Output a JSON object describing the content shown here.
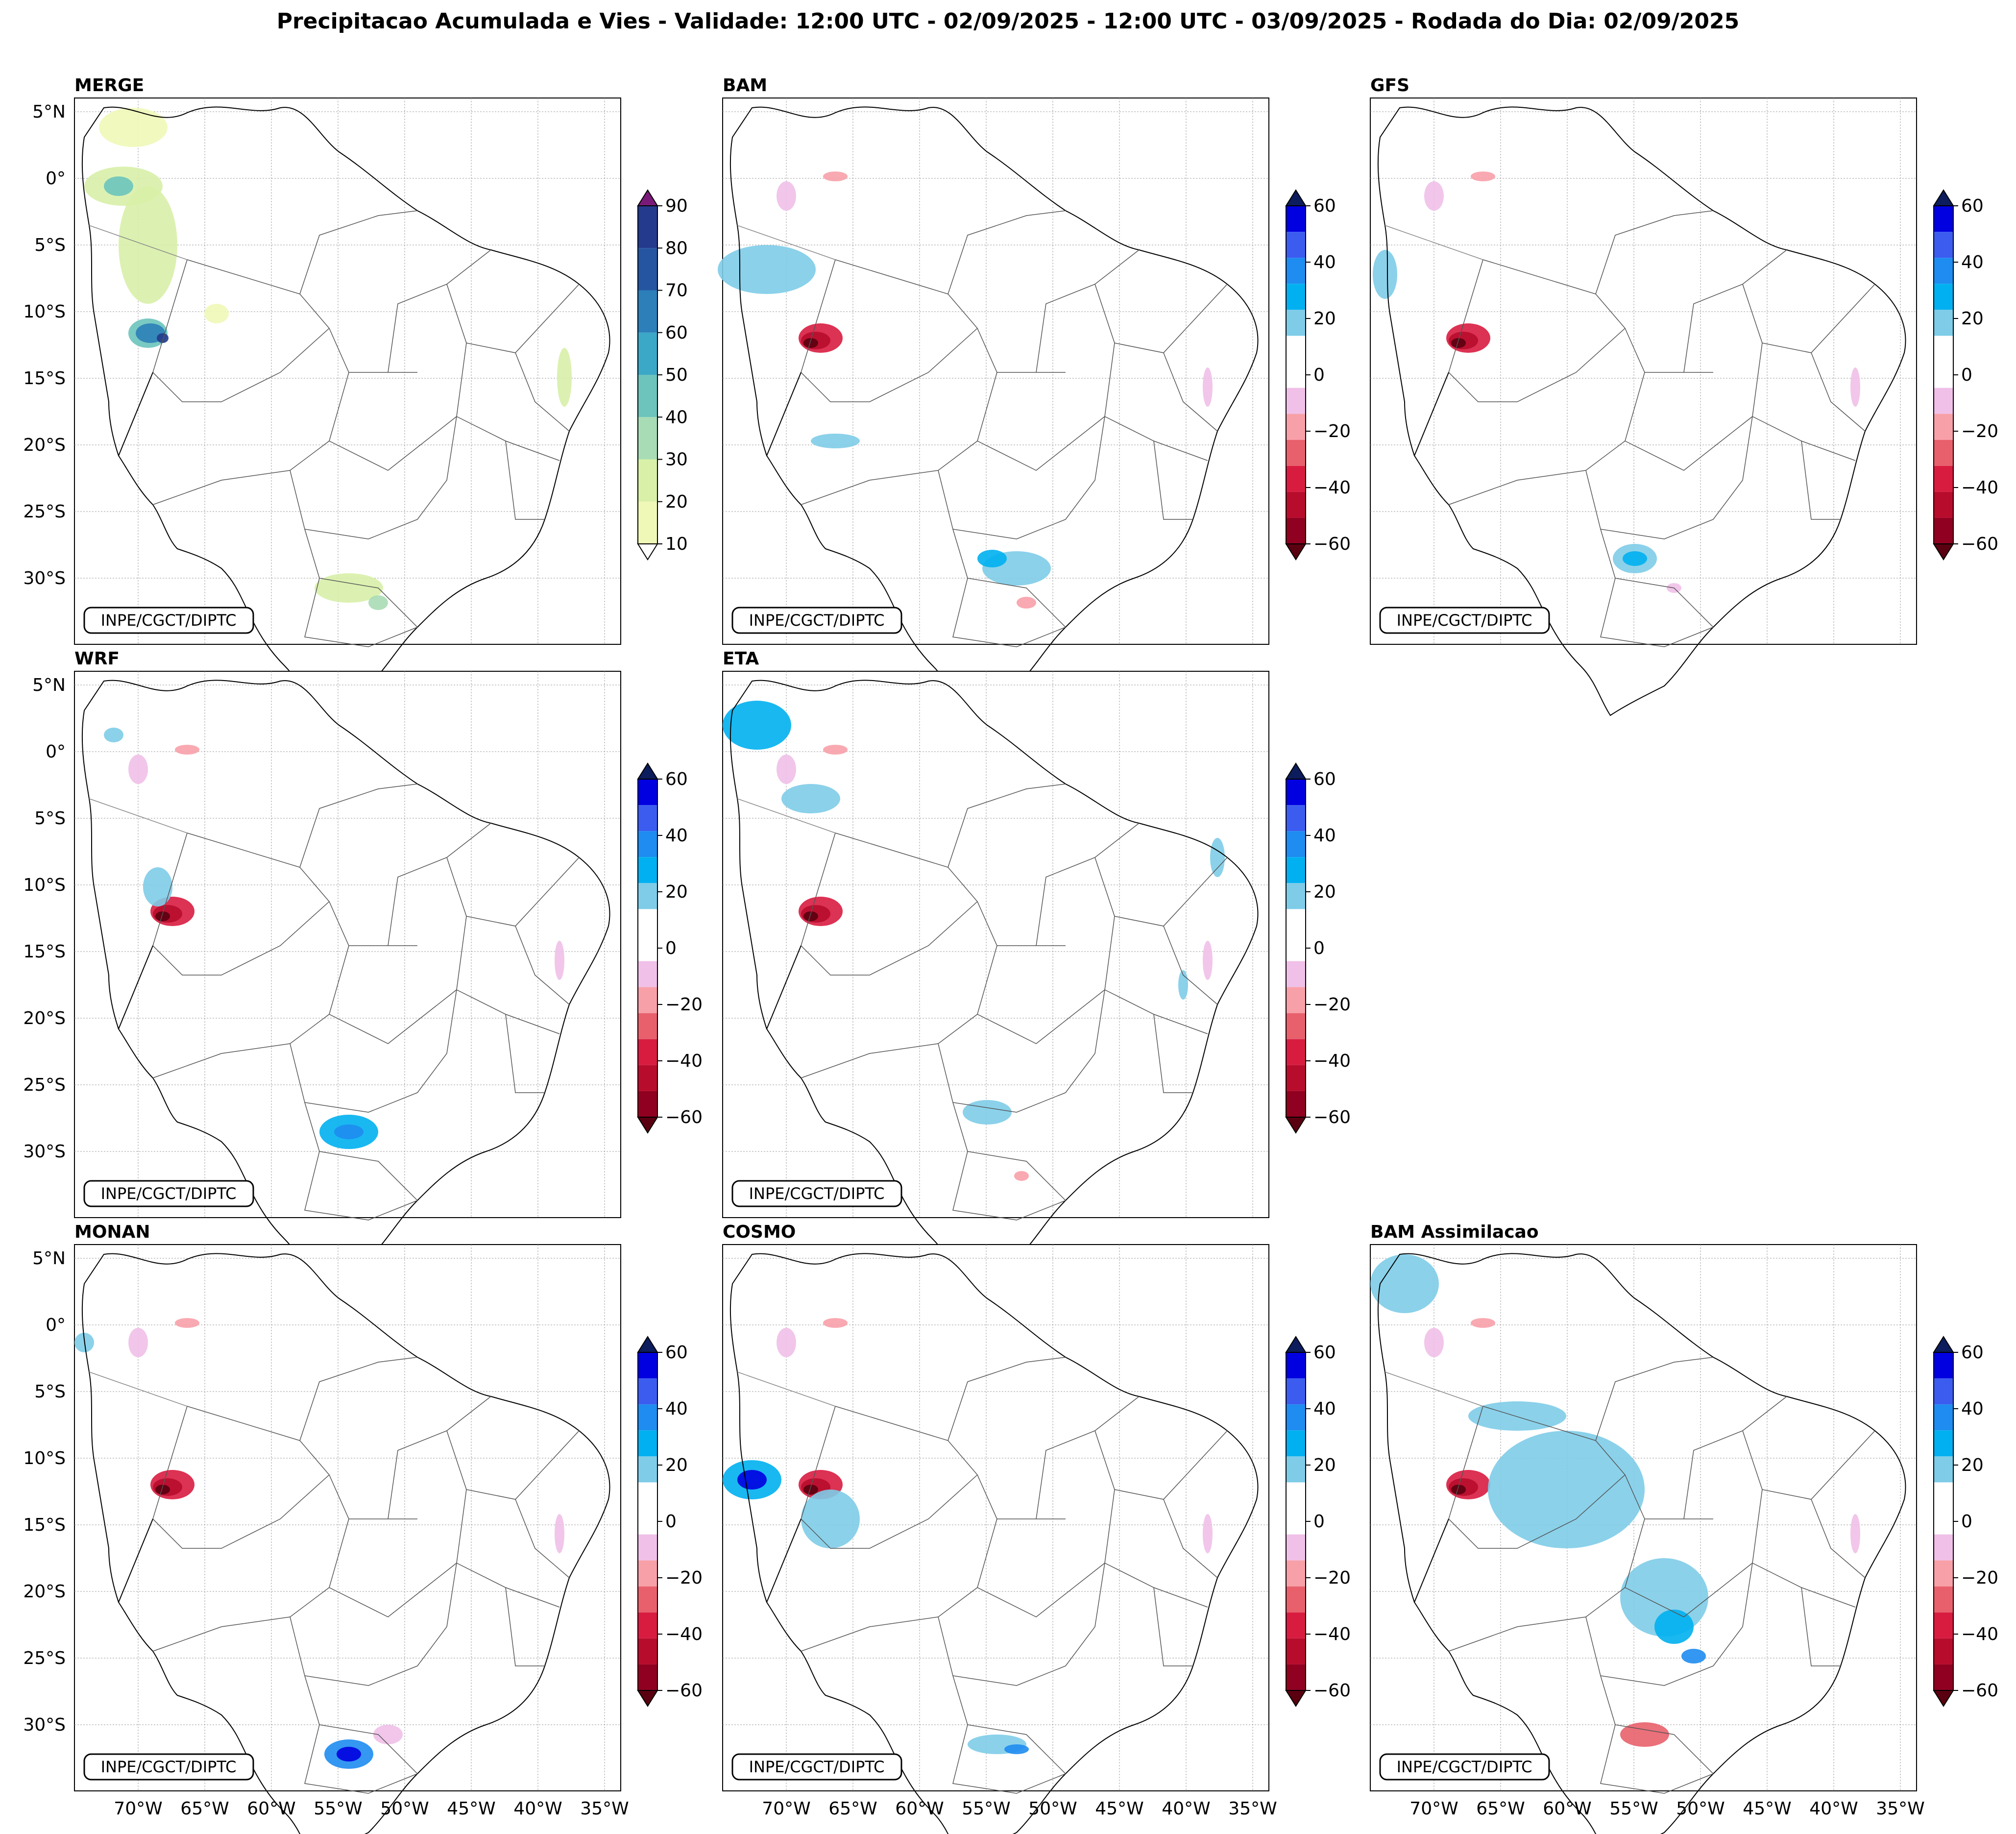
{
  "title": "Precipitacao Acumulada e Vies - Validade: 12:00 UTC - 02/09/2025 - 12:00 UTC - 03/09/2025 - Rodada do Dia: 02/09/2025",
  "credit": "INPE/CGCT/DIPTC",
  "lat_ticks": [
    "5°N",
    "0°",
    "5°S",
    "10°S",
    "15°S",
    "20°S",
    "25°S",
    "30°S"
  ],
  "lon_ticks": [
    "70°W",
    "65°W",
    "60°W",
    "55°W",
    "50°W",
    "45°W",
    "40°W",
    "35°W"
  ],
  "panels": [
    {
      "id": "merge",
      "title": "MERGE",
      "kind": "precip"
    },
    {
      "id": "bam",
      "title": "BAM",
      "kind": "bias"
    },
    {
      "id": "gfs",
      "title": "GFS",
      "kind": "bias"
    },
    {
      "id": "wrf",
      "title": "WRF",
      "kind": "bias"
    },
    {
      "id": "eta",
      "title": "ETA",
      "kind": "bias"
    },
    {
      "id": "monan",
      "title": "MONAN",
      "kind": "bias"
    },
    {
      "id": "cosmo",
      "title": "COSMO",
      "kind": "bias"
    },
    {
      "id": "bam_assim",
      "title": "BAM Assimilacao",
      "kind": "bias"
    }
  ],
  "colorbars": {
    "precip": {
      "ticks": [
        "10",
        "20",
        "30",
        "40",
        "50",
        "60",
        "70",
        "80",
        "90"
      ],
      "colors": [
        "#f0f8b8",
        "#d8f0a8",
        "#a8dcb4",
        "#6cc4bc",
        "#3ca8c8",
        "#2c7fb8",
        "#2555a0",
        "#243a8c",
        "#0c1c5c"
      ],
      "extend_top": "#7a1a78"
    },
    "bias": {
      "ticks": [
        "60",
        "40",
        "20",
        "0",
        "−20",
        "−40",
        "−60"
      ],
      "colors_top_to_bottom": [
        "#0000e0",
        "#3c5cf0",
        "#1e8cf0",
        "#00b0f0",
        "#7ecce8",
        "#ffffff",
        "#ffffff",
        "#f0c0e8",
        "#f8a0a8",
        "#e8606c",
        "#d81c40",
        "#b80c2c",
        "#900020"
      ],
      "extend_top": "#0c1c5c",
      "extend_bottom": "#5a0010"
    }
  }
}
